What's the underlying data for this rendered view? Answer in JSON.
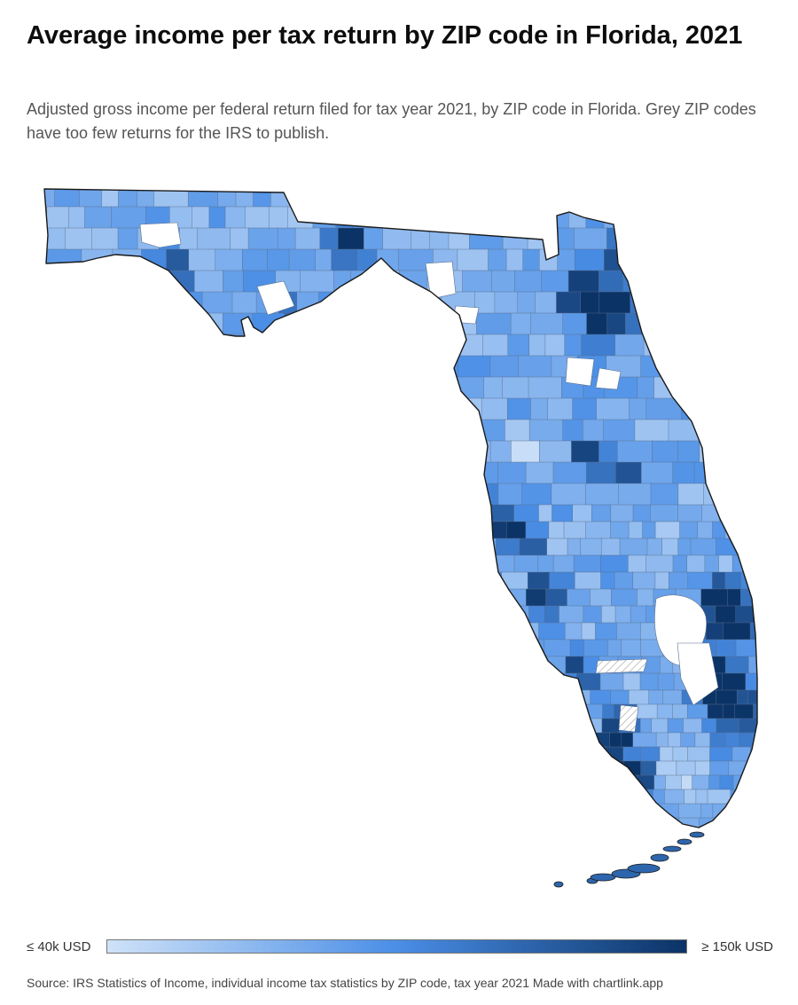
{
  "header": {
    "title": "Average income per tax return by ZIP code in Florida, 2021",
    "subtitle": "Adjusted gross income per federal return filed for tax year 2021, by ZIP code in Florida. Grey ZIP codes have too few returns for the IRS to publish."
  },
  "map": {
    "region": "Florida",
    "unit": "USD",
    "colors": {
      "low": "#cfe2f8",
      "mid": "#4a8ee6",
      "high": "#0b3366",
      "no_data": "#ffffff",
      "border": "#1a1a1a"
    }
  },
  "legend": {
    "min_label": "≤ 40k USD",
    "max_label": "≥ 150k USD",
    "min_value": 40000,
    "max_value": 150000
  },
  "footer": {
    "source": "Source: IRS Statistics of Income, individual income tax statistics by ZIP code, tax year 2021 Made with chartlink.app"
  }
}
